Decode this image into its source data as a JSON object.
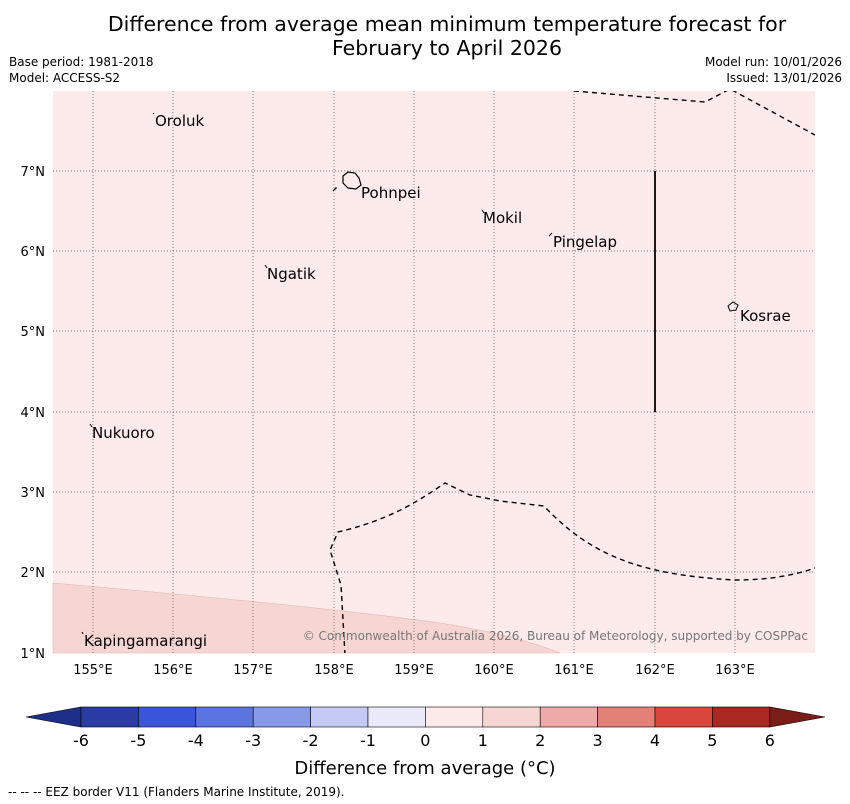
{
  "title": {
    "line1": "Difference from average mean minimum temperature forecast for",
    "line2": "February to April 2026"
  },
  "meta": {
    "base_period": "Base period: 1981-2018",
    "model": "Model: ACCESS-S2",
    "model_run": "Model run: 10/01/2026",
    "issued": "Issued: 13/01/2026"
  },
  "map": {
    "lon_labels": [
      "155°E",
      "156°E",
      "157°E",
      "158°E",
      "159°E",
      "160°E",
      "161°E",
      "162°E",
      "163°E"
    ],
    "lat_labels": [
      "7°N",
      "6°N",
      "5°N",
      "4°N",
      "3°N",
      "2°N",
      "1°N"
    ],
    "places": {
      "oroluk": "Oroluk",
      "pohnpei": "Pohnpei",
      "mokil": "Mokil",
      "pingelap": "Pingelap",
      "ngatik": "Ngatik",
      "kosrae": "Kosrae",
      "nukuoro": "Nukuoro",
      "kapingamarangi": "Kapingamarangi"
    },
    "copyright": "© Commonwealth of Australia 2026, Bureau of Meteorology, supported by COSPPac",
    "colors": {
      "band_0_1": "#fcebea",
      "band_1_2": "#f6d6d3"
    }
  },
  "colorbar": {
    "ticks": [
      "-6",
      "-5",
      "-4",
      "-3",
      "-2",
      "-1",
      "0",
      "1",
      "2",
      "3",
      "4",
      "5",
      "6"
    ],
    "title": "Difference from average (°C)",
    "colors": [
      "#2a3ca3",
      "#3b55d9",
      "#5b74e1",
      "#8899ea",
      "#c4caf4",
      "#eaeafb",
      "#fcebea",
      "#f6d6d3",
      "#eeaaa8",
      "#e48078",
      "#d9463c",
      "#a82822"
    ],
    "extend_low": "#1e2f8a",
    "extend_high": "#7b1c19"
  },
  "footer": "--  --  -- EEZ border V11 (Flanders Marine Institute, 2019)."
}
